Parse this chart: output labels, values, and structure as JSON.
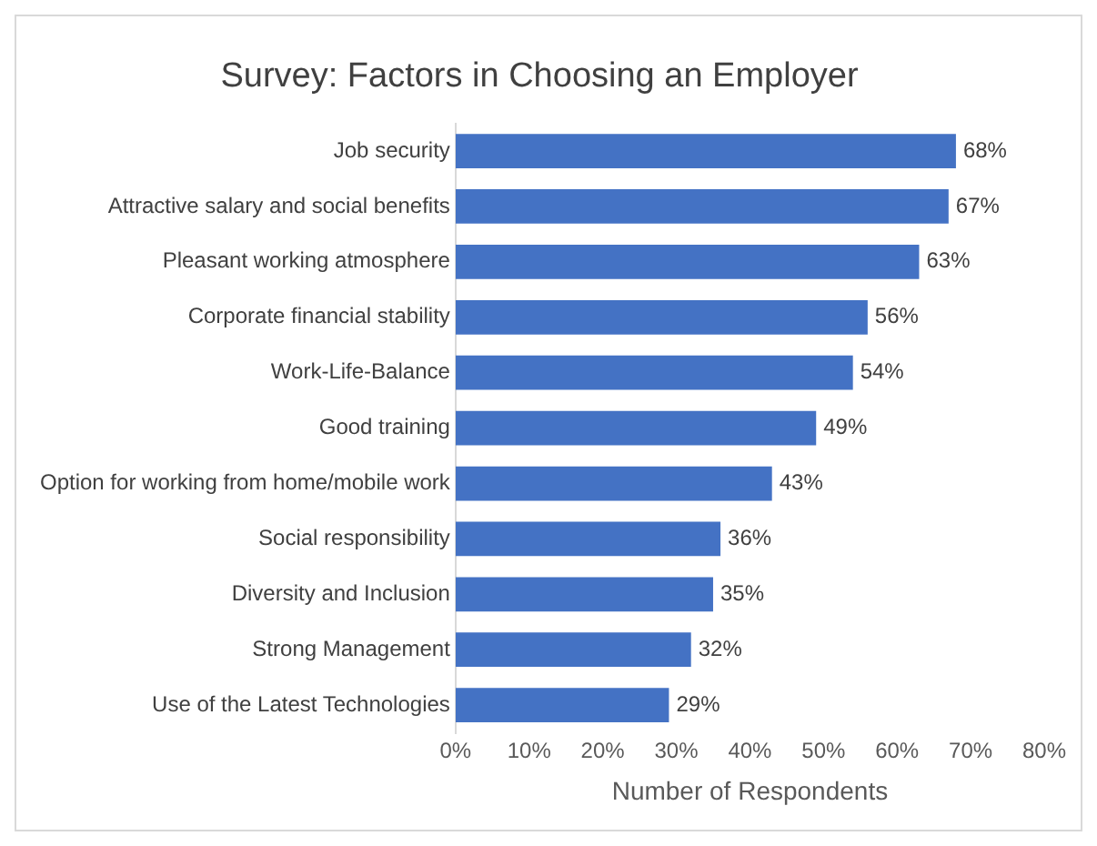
{
  "chart_data": {
    "type": "bar",
    "orientation": "horizontal",
    "title": "Survey: Factors in Choosing an Employer",
    "xlabel": "Number of Respondents",
    "categories": [
      "Job security",
      "Attractive salary and social benefits",
      "Pleasant working atmosphere",
      "Corporate financial stability",
      "Work-Life-Balance",
      "Good training",
      "Option for working from home/mobile work",
      "Social responsibility",
      "Diversity and Inclusion",
      "Strong Management",
      "Use of the Latest Technologies"
    ],
    "values": [
      68,
      67,
      63,
      56,
      54,
      49,
      43,
      36,
      35,
      32,
      29
    ],
    "value_labels": [
      "68%",
      "67%",
      "63%",
      "56%",
      "54%",
      "49%",
      "43%",
      "36%",
      "35%",
      "32%",
      "29%"
    ],
    "color": "#4472c4",
    "xlim": [
      0,
      80
    ],
    "xticks": [
      {
        "value": 0,
        "label": "0%"
      },
      {
        "value": 10,
        "label": "10%"
      },
      {
        "value": 20,
        "label": "20%"
      },
      {
        "value": 30,
        "label": "30%"
      },
      {
        "value": 40,
        "label": "40%"
      },
      {
        "value": 50,
        "label": "50%"
      },
      {
        "value": 60,
        "label": "60%"
      },
      {
        "value": 70,
        "label": "70%"
      },
      {
        "value": 80,
        "label": "80%"
      }
    ],
    "grid": false,
    "legend": false
  }
}
